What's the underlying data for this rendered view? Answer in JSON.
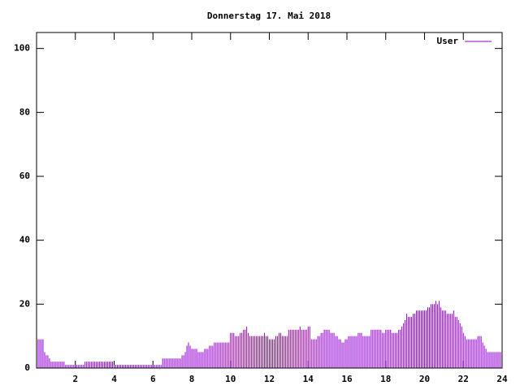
{
  "chart_data": {
    "type": "impulses",
    "title": "Donnerstag 17. Mai 2018",
    "x": [
      0,
      0.083,
      0.167,
      0.25,
      0.333,
      0.417,
      0.5,
      0.583,
      0.667,
      0.75,
      0.833,
      0.917,
      1,
      1.083,
      1.167,
      1.25,
      1.333,
      1.417,
      1.5,
      1.583,
      1.667,
      1.75,
      1.833,
      1.917,
      2,
      2.083,
      2.167,
      2.25,
      2.333,
      2.417,
      2.5,
      2.583,
      2.667,
      2.75,
      2.833,
      2.917,
      3,
      3.083,
      3.167,
      3.25,
      3.333,
      3.417,
      3.5,
      3.583,
      3.667,
      3.75,
      3.833,
      3.917,
      4,
      4.083,
      4.167,
      4.25,
      4.333,
      4.417,
      4.5,
      4.583,
      4.667,
      4.75,
      4.833,
      4.917,
      5,
      5.083,
      5.167,
      5.25,
      5.333,
      5.417,
      5.5,
      5.583,
      5.667,
      5.75,
      5.833,
      5.917,
      6,
      6.083,
      6.167,
      6.25,
      6.333,
      6.417,
      6.5,
      6.583,
      6.667,
      6.75,
      6.833,
      6.917,
      7,
      7.083,
      7.167,
      7.25,
      7.333,
      7.417,
      7.5,
      7.583,
      7.667,
      7.75,
      7.833,
      7.917,
      8,
      8.083,
      8.167,
      8.25,
      8.333,
      8.417,
      8.5,
      8.583,
      8.667,
      8.75,
      8.833,
      8.917,
      9,
      9.083,
      9.167,
      9.25,
      9.333,
      9.417,
      9.5,
      9.583,
      9.667,
      9.75,
      9.833,
      9.917,
      10,
      10.083,
      10.167,
      10.25,
      10.333,
      10.417,
      10.5,
      10.583,
      10.667,
      10.75,
      10.833,
      10.917,
      11,
      11.083,
      11.167,
      11.25,
      11.333,
      11.417,
      11.5,
      11.583,
      11.667,
      11.75,
      11.833,
      11.917,
      12,
      12.083,
      12.167,
      12.25,
      12.333,
      12.417,
      12.5,
      12.583,
      12.667,
      12.75,
      12.833,
      12.917,
      13,
      13.083,
      13.167,
      13.25,
      13.333,
      13.417,
      13.5,
      13.583,
      13.667,
      13.75,
      13.833,
      13.917,
      14,
      14.083,
      14.167,
      14.25,
      14.333,
      14.417,
      14.5,
      14.583,
      14.667,
      14.75,
      14.833,
      14.917,
      15,
      15.083,
      15.167,
      15.25,
      15.333,
      15.417,
      15.5,
      15.583,
      15.667,
      15.75,
      15.833,
      15.917,
      16,
      16.083,
      16.167,
      16.25,
      16.333,
      16.417,
      16.5,
      16.583,
      16.667,
      16.75,
      16.833,
      16.917,
      17,
      17.083,
      17.167,
      17.25,
      17.333,
      17.417,
      17.5,
      17.583,
      17.667,
      17.75,
      17.833,
      17.917,
      18,
      18.083,
      18.167,
      18.25,
      18.333,
      18.417,
      18.5,
      18.583,
      18.667,
      18.75,
      18.833,
      18.917,
      19,
      19.083,
      19.167,
      19.25,
      19.333,
      19.417,
      19.5,
      19.583,
      19.667,
      19.75,
      19.833,
      19.917,
      20,
      20.083,
      20.167,
      20.25,
      20.333,
      20.417,
      20.5,
      20.583,
      20.667,
      20.75,
      20.833,
      20.917,
      21,
      21.083,
      21.167,
      21.25,
      21.333,
      21.417,
      21.5,
      21.583,
      21.667,
      21.75,
      21.833,
      21.917,
      22,
      22.083,
      22.167,
      22.25,
      22.333,
      22.417,
      22.5,
      22.583,
      22.667,
      22.75,
      22.833,
      22.917,
      23,
      23.083,
      23.167,
      23.25,
      23.333,
      23.417,
      23.5,
      23.583,
      23.667,
      23.75,
      23.833,
      23.917
    ],
    "series": [
      {
        "name": "User",
        "color": "#9400d3",
        "values": [
          9,
          9,
          9,
          9,
          9,
          5,
          4,
          4,
          3,
          2,
          2,
          2,
          2,
          2,
          2,
          2,
          2,
          2,
          1,
          1,
          1,
          1,
          1,
          1,
          1,
          1,
          1,
          1,
          1,
          1,
          2,
          2,
          2,
          2,
          2,
          2,
          2,
          2,
          2,
          2,
          2,
          2,
          2,
          2,
          2,
          2,
          2,
          2,
          1,
          1,
          1,
          1,
          1,
          1,
          1,
          1,
          1,
          1,
          1,
          1,
          1,
          1,
          1,
          1,
          1,
          1,
          1,
          1,
          1,
          1,
          1,
          1,
          1,
          1,
          1,
          1,
          1,
          1,
          3,
          3,
          3,
          3,
          3,
          3,
          3,
          3,
          3,
          3,
          3,
          3,
          4,
          4,
          5,
          7,
          8,
          7,
          6,
          6,
          6,
          6,
          5,
          5,
          5,
          5,
          6,
          6,
          6,
          7,
          7,
          7,
          8,
          8,
          8,
          8,
          8,
          8,
          8,
          8,
          8,
          8,
          11,
          11,
          11,
          10,
          10,
          10,
          11,
          11,
          12,
          12,
          13,
          11,
          10,
          10,
          10,
          10,
          10,
          10,
          10,
          10,
          10,
          11,
          10,
          10,
          9,
          9,
          9,
          9,
          10,
          10,
          11,
          11,
          10,
          10,
          10,
          10,
          12,
          12,
          12,
          12,
          12,
          12,
          12,
          13,
          12,
          12,
          12,
          12,
          13,
          13,
          9,
          9,
          9,
          9,
          10,
          10,
          11,
          11,
          12,
          12,
          12,
          12,
          11,
          11,
          11,
          10,
          10,
          9,
          9,
          8,
          8,
          9,
          9,
          10,
          10,
          10,
          10,
          10,
          10,
          11,
          11,
          11,
          10,
          10,
          10,
          10,
          10,
          12,
          12,
          12,
          12,
          12,
          12,
          12,
          11,
          11,
          12,
          12,
          12,
          12,
          11,
          11,
          11,
          11,
          12,
          12,
          13,
          14,
          15,
          17,
          16,
          16,
          16,
          17,
          17,
          18,
          18,
          18,
          18,
          18,
          18,
          18,
          19,
          19,
          20,
          20,
          20,
          21,
          20,
          21,
          19,
          18,
          18,
          18,
          17,
          17,
          17,
          17,
          18,
          16,
          16,
          15,
          14,
          13,
          11,
          10,
          9,
          9,
          9,
          9,
          9,
          9,
          9,
          10,
          10,
          10,
          8,
          7,
          6,
          5,
          5,
          5,
          5,
          5,
          5,
          5,
          5,
          5
        ]
      }
    ],
    "xlim": [
      0,
      24
    ],
    "xticks": [
      2,
      4,
      6,
      8,
      10,
      12,
      14,
      16,
      18,
      20,
      22,
      24
    ],
    "ylim": [
      0,
      105
    ],
    "yticks": [
      0,
      20,
      40,
      60,
      80,
      100
    ],
    "legend": "top-right"
  }
}
